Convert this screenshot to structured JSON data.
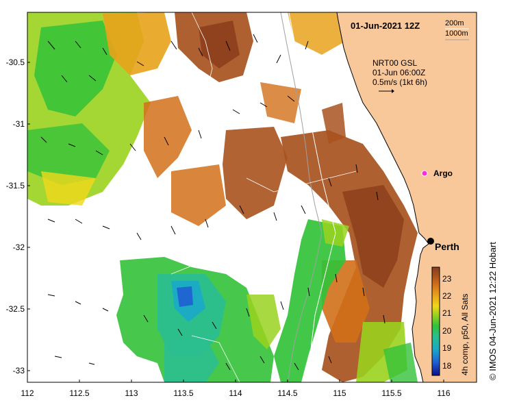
{
  "title": "01-Jun-2021 12Z",
  "depth_legend": [
    "200m",
    "1000m"
  ],
  "current_legend": {
    "line1": "NRT00 GSL",
    "line2": "01-Jun 06:00Z",
    "line3": "0.5m/s (1kt 6h)"
  },
  "places": {
    "argo": "Argo",
    "perth": "Perth"
  },
  "axes": {
    "lon_ticks": [
      "112",
      "112.5",
      "113",
      "113.5",
      "114",
      "114.5",
      "115",
      "115.5",
      "116"
    ],
    "lat_ticks": [
      "-30.5",
      "-31",
      "-31.5",
      "-32",
      "-32.5",
      "-33"
    ]
  },
  "colorbar": {
    "ticks": [
      "23",
      "22",
      "21",
      "20",
      "19",
      "18"
    ],
    "label": "4h comp, p50, All Sats",
    "colors": [
      "#0b0f8a",
      "#1f5fd1",
      "#1aa8c8",
      "#2bbf8f",
      "#33c23a",
      "#9ad21e",
      "#f0d81a",
      "#e8a21b",
      "#d2701a",
      "#a8521e",
      "#8a3d1a"
    ]
  },
  "credit": "IMOS 04-Jun-2021 12:22 Hobart",
  "colors": {
    "land": "#f8c79a",
    "warm": "#a8521e",
    "cool": "#33c23a"
  }
}
